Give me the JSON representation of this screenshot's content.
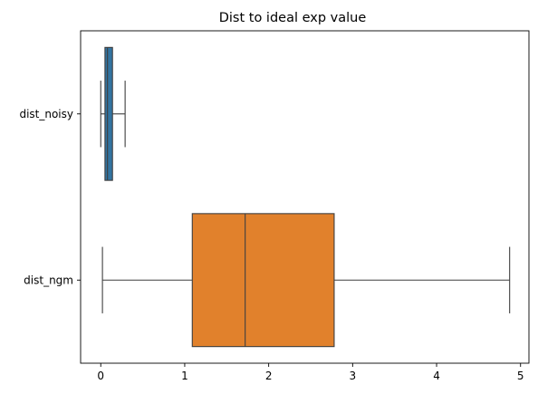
{
  "chart_data": {
    "type": "boxplot",
    "orientation": "horizontal",
    "title": "Dist to ideal exp value",
    "xlabel": "",
    "ylabel": "",
    "xlim": [
      -0.24,
      5.1
    ],
    "x_ticks": [
      0,
      1,
      2,
      3,
      4,
      5
    ],
    "grid": false,
    "categories": [
      "dist_noisy",
      "dist_ngm"
    ],
    "series": [
      {
        "name": "dist_noisy",
        "color": "#3274a1",
        "whisker_low": 0.0,
        "q1": 0.05,
        "median": 0.08,
        "q3": 0.14,
        "whisker_high": 0.29
      },
      {
        "name": "dist_ngm",
        "color": "#e1812c",
        "whisker_low": 0.02,
        "q1": 1.09,
        "median": 1.72,
        "q3": 2.78,
        "whisker_high": 4.87
      }
    ]
  }
}
